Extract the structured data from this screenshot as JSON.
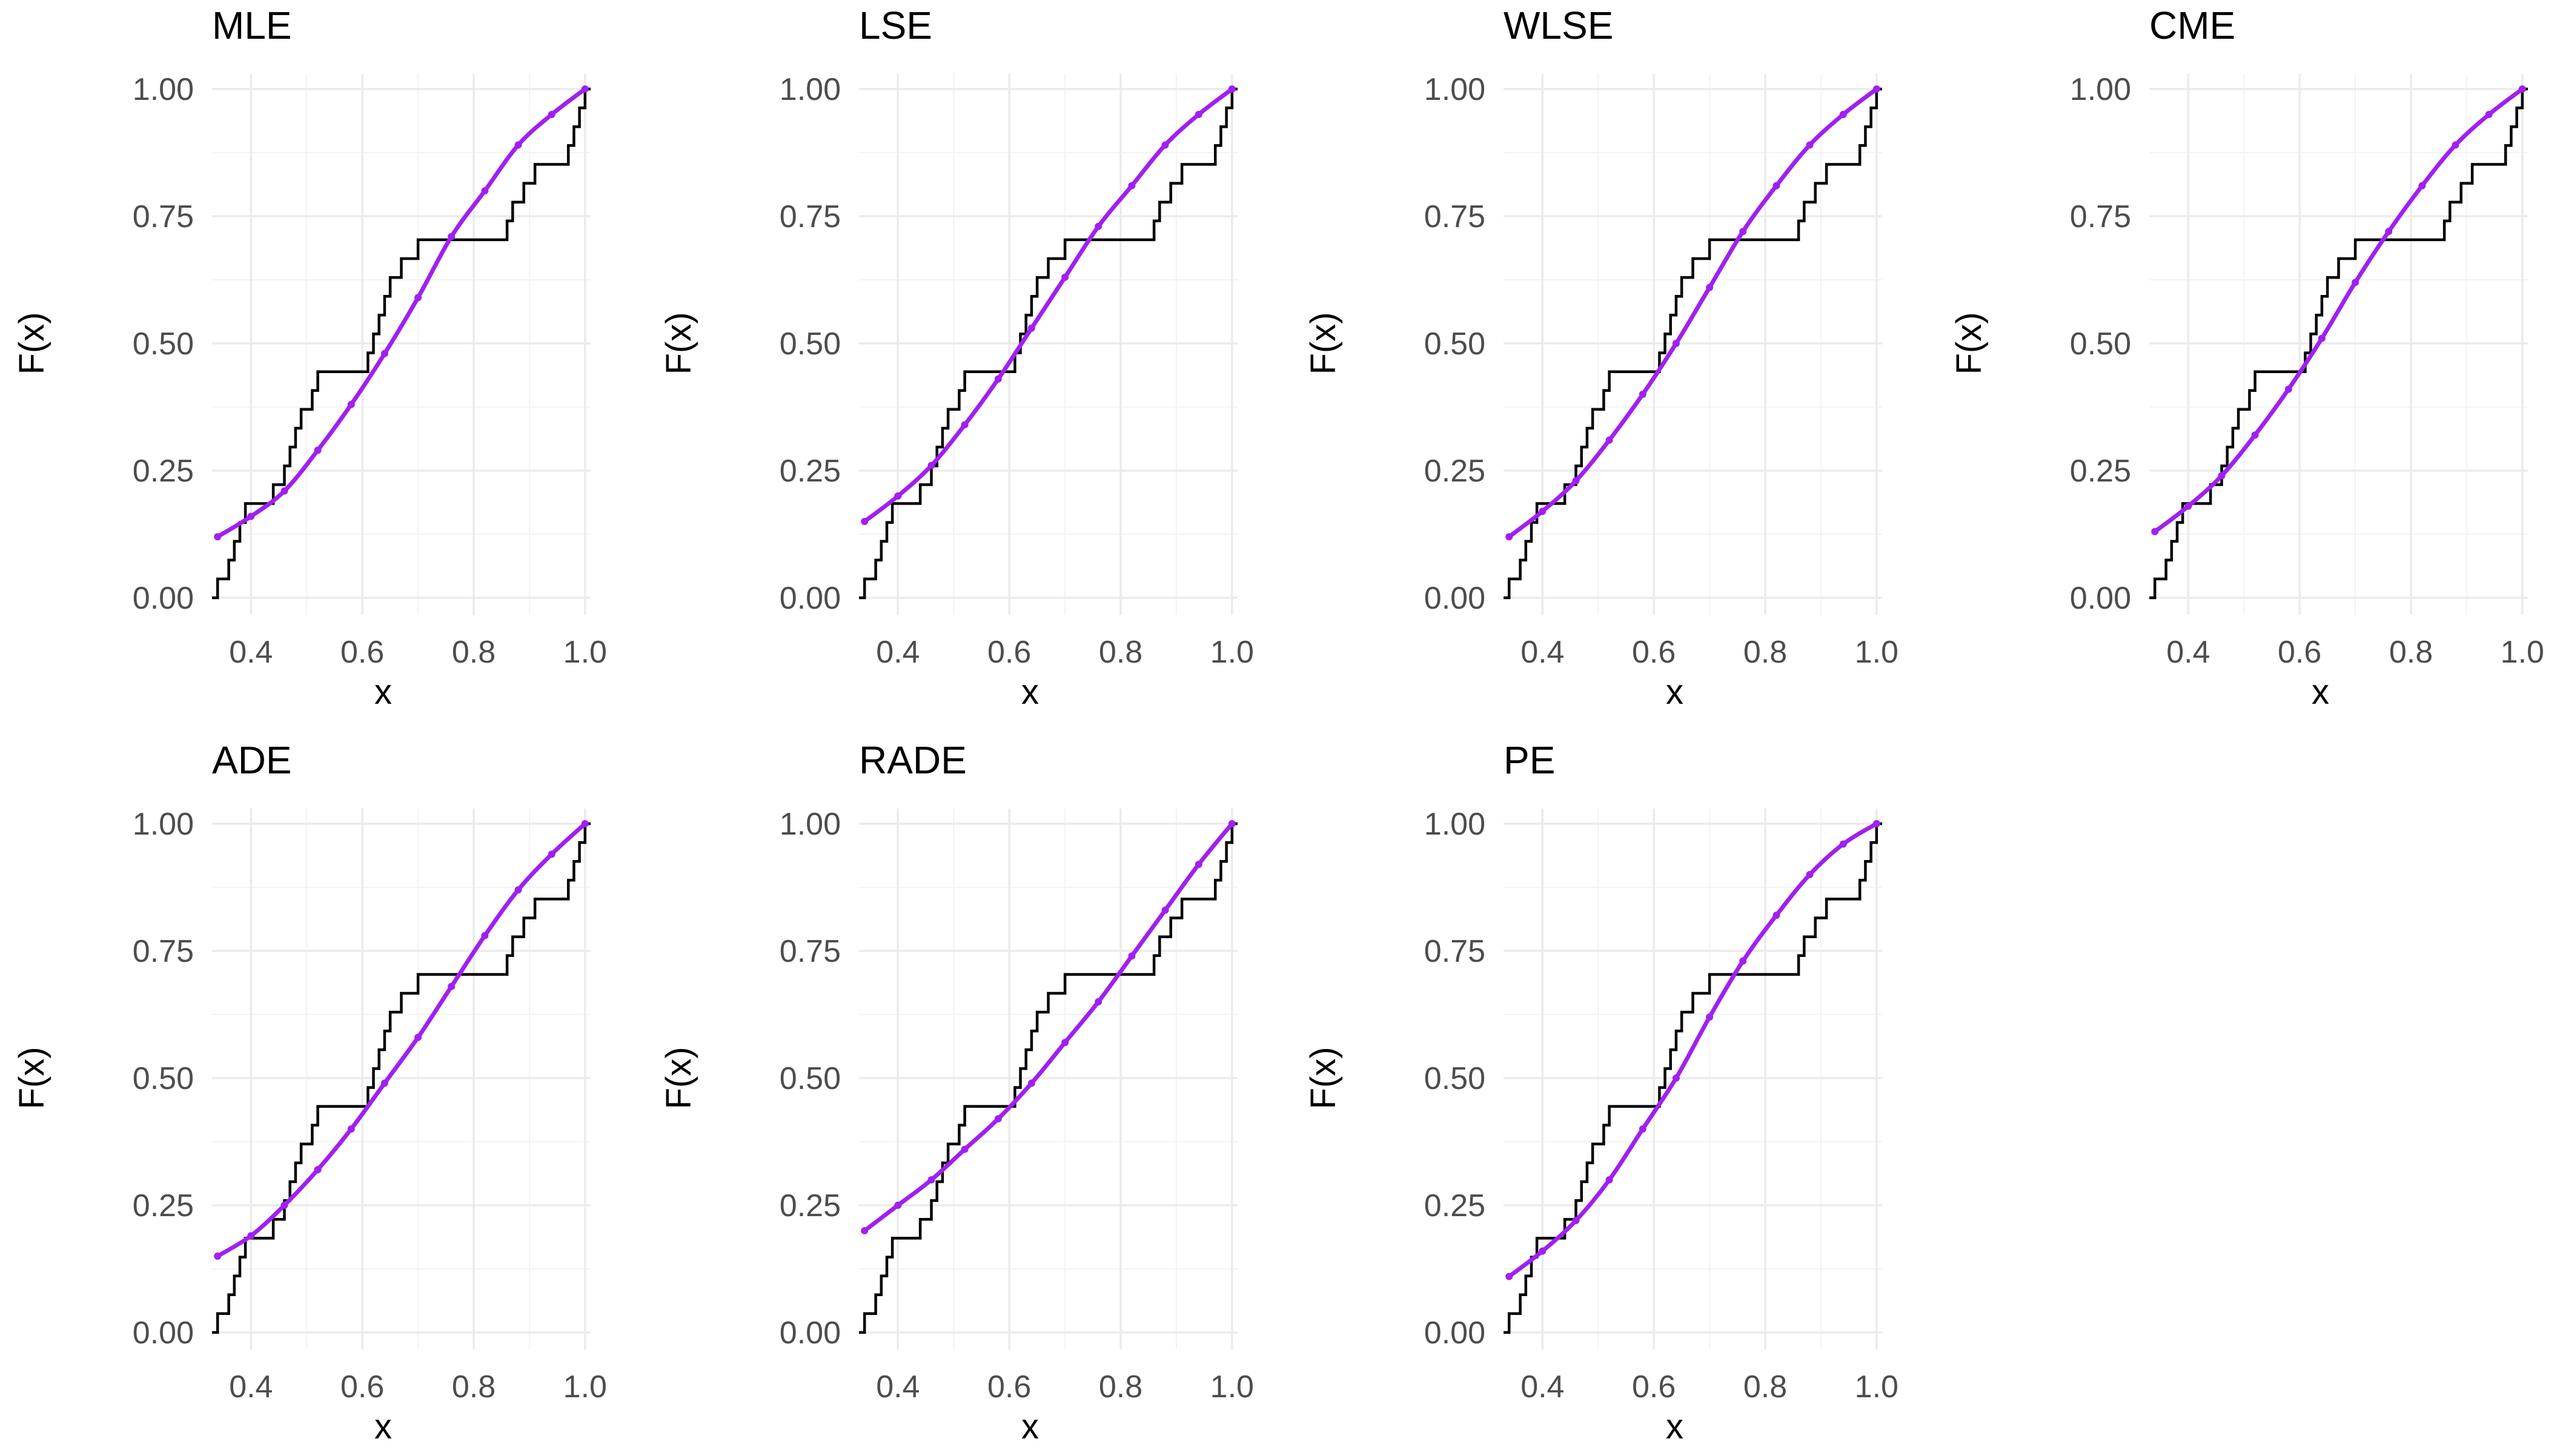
{
  "colors": {
    "ecdf": "#000000",
    "fitted": "#a020f0"
  },
  "chart_data": [
    {
      "type": "line",
      "title": "MLE",
      "xlabel": "x",
      "ylabel": "F(x)",
      "xlim": [
        0.33,
        1.01
      ],
      "ylim": [
        0,
        1
      ],
      "xticks": [
        "0.4",
        "0.6",
        "0.8",
        "1.0"
      ],
      "yticks": [
        "0.00",
        "0.25",
        "0.50",
        "0.75",
        "1.00"
      ],
      "ecdf_x": [
        0.34,
        0.36,
        0.37,
        0.38,
        0.39,
        0.44,
        0.46,
        0.47,
        0.48,
        0.49,
        0.51,
        0.52,
        0.61,
        0.62,
        0.63,
        0.64,
        0.65,
        0.67,
        0.7,
        0.86,
        0.87,
        0.89,
        0.91,
        0.97,
        0.98,
        0.99,
        1.0
      ],
      "series": [
        {
          "name": "Fitted CDF",
          "x": [
            0.34,
            0.4,
            0.46,
            0.52,
            0.58,
            0.64,
            0.7,
            0.76,
            0.82,
            0.88,
            0.94,
            1.0
          ],
          "y": [
            0.12,
            0.16,
            0.21,
            0.29,
            0.38,
            0.48,
            0.59,
            0.71,
            0.8,
            0.89,
            0.95,
            1.0
          ]
        }
      ]
    },
    {
      "type": "line",
      "title": "LSE",
      "xlabel": "x",
      "ylabel": "F(x)",
      "xlim": [
        0.33,
        1.01
      ],
      "ylim": [
        0,
        1
      ],
      "xticks": [
        "0.4",
        "0.6",
        "0.8",
        "1.0"
      ],
      "yticks": [
        "0.00",
        "0.25",
        "0.50",
        "0.75",
        "1.00"
      ],
      "ecdf_x": [
        0.34,
        0.36,
        0.37,
        0.38,
        0.39,
        0.44,
        0.46,
        0.47,
        0.48,
        0.49,
        0.51,
        0.52,
        0.61,
        0.62,
        0.63,
        0.64,
        0.65,
        0.67,
        0.7,
        0.86,
        0.87,
        0.89,
        0.91,
        0.97,
        0.98,
        0.99,
        1.0
      ],
      "series": [
        {
          "name": "Fitted CDF",
          "x": [
            0.34,
            0.4,
            0.46,
            0.52,
            0.58,
            0.64,
            0.7,
            0.76,
            0.82,
            0.88,
            0.94,
            1.0
          ],
          "y": [
            0.15,
            0.2,
            0.26,
            0.34,
            0.43,
            0.53,
            0.63,
            0.73,
            0.81,
            0.89,
            0.95,
            1.0
          ]
        }
      ]
    },
    {
      "type": "line",
      "title": "WLSE",
      "xlabel": "x",
      "ylabel": "F(x)",
      "xlim": [
        0.33,
        1.01
      ],
      "ylim": [
        0,
        1
      ],
      "xticks": [
        "0.4",
        "0.6",
        "0.8",
        "1.0"
      ],
      "yticks": [
        "0.00",
        "0.25",
        "0.50",
        "0.75",
        "1.00"
      ],
      "ecdf_x": [
        0.34,
        0.36,
        0.37,
        0.38,
        0.39,
        0.44,
        0.46,
        0.47,
        0.48,
        0.49,
        0.51,
        0.52,
        0.61,
        0.62,
        0.63,
        0.64,
        0.65,
        0.67,
        0.7,
        0.86,
        0.87,
        0.89,
        0.91,
        0.97,
        0.98,
        0.99,
        1.0
      ],
      "series": [
        {
          "name": "Fitted CDF",
          "x": [
            0.34,
            0.4,
            0.46,
            0.52,
            0.58,
            0.64,
            0.7,
            0.76,
            0.82,
            0.88,
            0.94,
            1.0
          ],
          "y": [
            0.12,
            0.17,
            0.23,
            0.31,
            0.4,
            0.5,
            0.61,
            0.72,
            0.81,
            0.89,
            0.95,
            1.0
          ]
        }
      ]
    },
    {
      "type": "line",
      "title": "CME",
      "xlabel": "x",
      "ylabel": "F(x)",
      "xlim": [
        0.33,
        1.01
      ],
      "ylim": [
        0,
        1
      ],
      "xticks": [
        "0.4",
        "0.6",
        "0.8",
        "1.0"
      ],
      "yticks": [
        "0.00",
        "0.25",
        "0.50",
        "0.75",
        "1.00"
      ],
      "ecdf_x": [
        0.34,
        0.36,
        0.37,
        0.38,
        0.39,
        0.44,
        0.46,
        0.47,
        0.48,
        0.49,
        0.51,
        0.52,
        0.61,
        0.62,
        0.63,
        0.64,
        0.65,
        0.67,
        0.7,
        0.86,
        0.87,
        0.89,
        0.91,
        0.97,
        0.98,
        0.99,
        1.0
      ],
      "series": [
        {
          "name": "Fitted CDF",
          "x": [
            0.34,
            0.4,
            0.46,
            0.52,
            0.58,
            0.64,
            0.7,
            0.76,
            0.82,
            0.88,
            0.94,
            1.0
          ],
          "y": [
            0.13,
            0.18,
            0.24,
            0.32,
            0.41,
            0.51,
            0.62,
            0.72,
            0.81,
            0.89,
            0.95,
            1.0
          ]
        }
      ]
    },
    {
      "type": "line",
      "title": "ADE",
      "xlabel": "x",
      "ylabel": "F(x)",
      "xlim": [
        0.33,
        1.01
      ],
      "ylim": [
        0,
        1
      ],
      "xticks": [
        "0.4",
        "0.6",
        "0.8",
        "1.0"
      ],
      "yticks": [
        "0.00",
        "0.25",
        "0.50",
        "0.75",
        "1.00"
      ],
      "ecdf_x": [
        0.34,
        0.36,
        0.37,
        0.38,
        0.39,
        0.44,
        0.46,
        0.47,
        0.48,
        0.49,
        0.51,
        0.52,
        0.61,
        0.62,
        0.63,
        0.64,
        0.65,
        0.67,
        0.7,
        0.86,
        0.87,
        0.89,
        0.91,
        0.97,
        0.98,
        0.99,
        1.0
      ],
      "series": [
        {
          "name": "Fitted CDF",
          "x": [
            0.34,
            0.4,
            0.46,
            0.52,
            0.58,
            0.64,
            0.7,
            0.76,
            0.82,
            0.88,
            0.94,
            1.0
          ],
          "y": [
            0.15,
            0.19,
            0.25,
            0.32,
            0.4,
            0.49,
            0.58,
            0.68,
            0.78,
            0.87,
            0.94,
            1.0
          ]
        }
      ]
    },
    {
      "type": "line",
      "title": "RADE",
      "xlabel": "x",
      "ylabel": "F(x)",
      "xlim": [
        0.33,
        1.01
      ],
      "ylim": [
        0,
        1
      ],
      "xticks": [
        "0.4",
        "0.6",
        "0.8",
        "1.0"
      ],
      "yticks": [
        "0.00",
        "0.25",
        "0.50",
        "0.75",
        "1.00"
      ],
      "ecdf_x": [
        0.34,
        0.36,
        0.37,
        0.38,
        0.39,
        0.44,
        0.46,
        0.47,
        0.48,
        0.49,
        0.51,
        0.52,
        0.61,
        0.62,
        0.63,
        0.64,
        0.65,
        0.67,
        0.7,
        0.86,
        0.87,
        0.89,
        0.91,
        0.97,
        0.98,
        0.99,
        1.0
      ],
      "series": [
        {
          "name": "Fitted CDF",
          "x": [
            0.34,
            0.4,
            0.46,
            0.52,
            0.58,
            0.64,
            0.7,
            0.76,
            0.82,
            0.88,
            0.94,
            1.0
          ],
          "y": [
            0.2,
            0.25,
            0.3,
            0.36,
            0.42,
            0.49,
            0.57,
            0.65,
            0.74,
            0.83,
            0.92,
            1.0
          ]
        }
      ]
    },
    {
      "type": "line",
      "title": "PE",
      "xlabel": "x",
      "ylabel": "F(x)",
      "xlim": [
        0.33,
        1.01
      ],
      "ylim": [
        0,
        1
      ],
      "xticks": [
        "0.4",
        "0.6",
        "0.8",
        "1.0"
      ],
      "yticks": [
        "0.00",
        "0.25",
        "0.50",
        "0.75",
        "1.00"
      ],
      "ecdf_x": [
        0.34,
        0.36,
        0.37,
        0.38,
        0.39,
        0.44,
        0.46,
        0.47,
        0.48,
        0.49,
        0.51,
        0.52,
        0.61,
        0.62,
        0.63,
        0.64,
        0.65,
        0.67,
        0.7,
        0.86,
        0.87,
        0.89,
        0.91,
        0.97,
        0.98,
        0.99,
        1.0
      ],
      "series": [
        {
          "name": "Fitted CDF",
          "x": [
            0.34,
            0.4,
            0.46,
            0.52,
            0.58,
            0.64,
            0.7,
            0.76,
            0.82,
            0.88,
            0.94,
            1.0
          ],
          "y": [
            0.11,
            0.16,
            0.22,
            0.3,
            0.4,
            0.5,
            0.62,
            0.73,
            0.82,
            0.9,
            0.96,
            1.0
          ]
        }
      ]
    }
  ]
}
